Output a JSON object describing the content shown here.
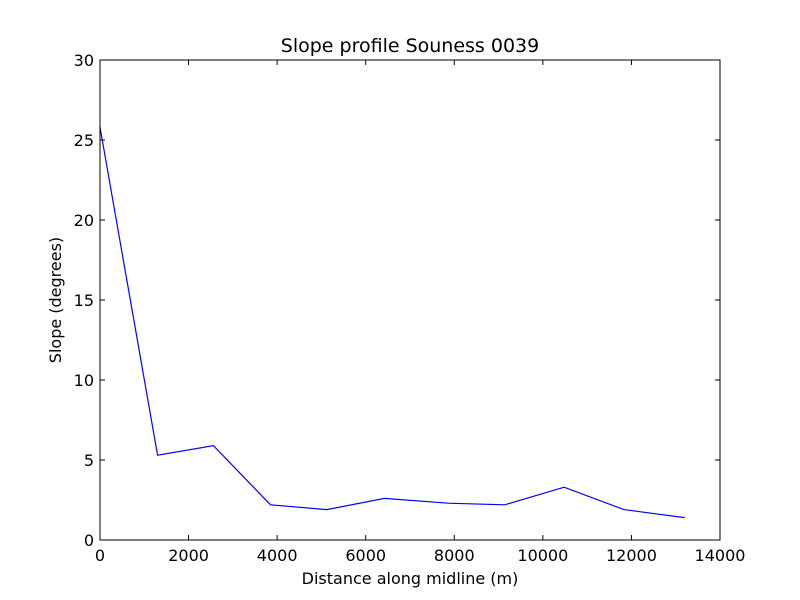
{
  "chart_data": {
    "type": "line",
    "title": "Slope profile Souness 0039",
    "xlabel": "Distance along midline (m)",
    "ylabel": "Slope (degrees)",
    "xlim": [
      0,
      14000
    ],
    "ylim": [
      0,
      30
    ],
    "xticks": [
      0,
      2000,
      4000,
      6000,
      8000,
      10000,
      12000,
      14000
    ],
    "yticks": [
      0,
      5,
      10,
      15,
      20,
      25,
      30
    ],
    "grid": false,
    "series": [
      {
        "color": "#0000ff",
        "x": [
          0,
          1300,
          2560,
          3850,
          5120,
          6420,
          7860,
          9140,
          10480,
          11830,
          13200
        ],
        "y": [
          25.8,
          5.3,
          5.9,
          2.2,
          1.9,
          2.6,
          2.3,
          2.2,
          3.3,
          1.9,
          1.4
        ]
      }
    ]
  }
}
